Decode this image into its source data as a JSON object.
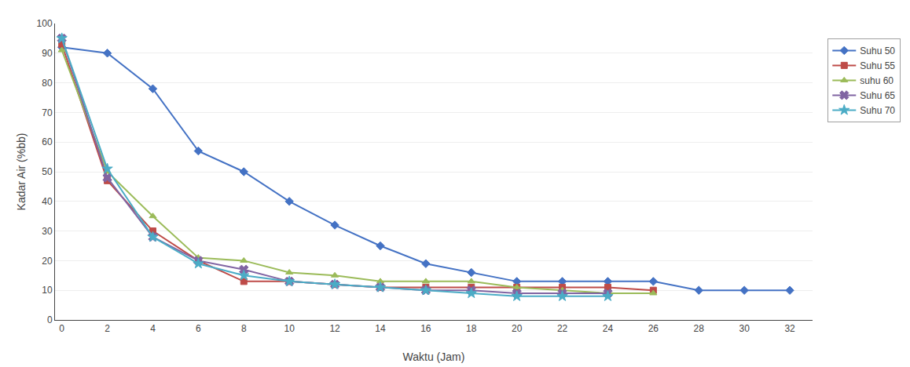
{
  "chart_data": {
    "type": "line",
    "xlabel": "Waktu (Jam)",
    "ylabel": "Kadar Air (%bb)",
    "x": [
      0,
      2,
      4,
      6,
      8,
      10,
      12,
      14,
      16,
      18,
      20,
      22,
      24,
      26,
      28,
      30,
      32
    ],
    "series": [
      {
        "name": "Suhu 50",
        "color": "#4472C4",
        "marker": "diamond",
        "line_style": "solid",
        "values": [
          92,
          90,
          78,
          57,
          50,
          40,
          32,
          25,
          19,
          16,
          13,
          13,
          13,
          13,
          10,
          10,
          10
        ]
      },
      {
        "name": "Suhu 55",
        "color": "#BE4B48",
        "marker": "square",
        "line_style": "solid",
        "values": [
          93,
          47,
          30,
          20,
          13,
          13,
          12,
          11,
          11,
          11,
          11,
          11,
          11,
          10,
          null,
          null,
          null
        ]
      },
      {
        "name": "suhu 60",
        "color": "#9BBB59",
        "marker": "triangle-up",
        "line_style": "solid",
        "values": [
          91,
          50,
          35,
          21,
          20,
          16,
          15,
          13,
          13,
          13,
          11,
          10,
          9,
          9,
          null,
          null,
          null
        ]
      },
      {
        "name": "Suhu 65",
        "color": "#8064A2",
        "marker": "x",
        "line_style": "solid",
        "values": [
          95,
          48,
          28,
          20,
          17,
          13,
          12,
          11,
          10,
          10,
          9,
          9,
          9,
          null,
          null,
          null,
          null
        ]
      },
      {
        "name": "Suhu 70",
        "color": "#4BACC6",
        "marker": "star",
        "line_style": "solid",
        "values": [
          95,
          51,
          28,
          19,
          15,
          13,
          12,
          11,
          10,
          9,
          8,
          8,
          8,
          null,
          null,
          null,
          null
        ]
      }
    ],
    "xlim": [
      -0.3,
      33
    ],
    "ylim": [
      0,
      100
    ],
    "xticks": [
      0,
      2,
      4,
      6,
      8,
      10,
      12,
      14,
      16,
      18,
      20,
      22,
      24,
      26,
      28,
      30,
      32
    ],
    "yticks": [
      0,
      10,
      20,
      30,
      40,
      50,
      60,
      70,
      80,
      90,
      100
    ],
    "grid": "y",
    "legend": "right"
  }
}
